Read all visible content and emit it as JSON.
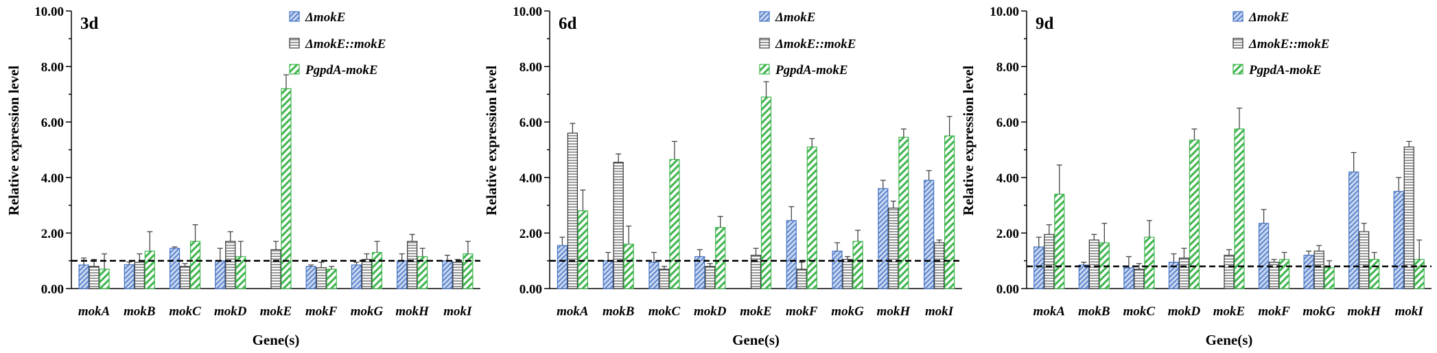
{
  "series_colors": [
    "#4472c4",
    "#333333",
    "#3cb44b"
  ],
  "series_fill_colors": [
    "#c9d8f2",
    "#ffffff",
    "#ffffff"
  ],
  "chart_data": [
    {
      "type": "bar",
      "panel_label": "3d",
      "categories": [
        "mokA",
        "mokB",
        "mokC",
        "mokD",
        "mokE",
        "mokF",
        "mokG",
        "mokH",
        "mokI"
      ],
      "series": [
        {
          "name": "ΔmokE",
          "values": [
            0.85,
            0.86,
            1.45,
            1.0,
            0,
            0.8,
            0.85,
            1.0,
            1.0
          ],
          "errors": [
            0.25,
            0.1,
            0.05,
            0.45,
            0,
            0.05,
            0.1,
            0.25,
            0.2
          ]
        },
        {
          "name": "ΔmokE::mokE",
          "values": [
            0.8,
            0.95,
            0.8,
            1.7,
            1.4,
            0.75,
            1.05,
            1.7,
            0.95
          ],
          "errors": [
            0.25,
            0.3,
            0.1,
            0.35,
            0.3,
            0.2,
            0.2,
            0.25,
            0.1
          ]
        },
        {
          "name": "PgpdA-mokE",
          "values": [
            0.7,
            1.35,
            1.7,
            1.15,
            7.2,
            0.7,
            1.3,
            1.15,
            1.25
          ],
          "errors": [
            0.55,
            0.7,
            0.6,
            0.55,
            0.5,
            0.1,
            0.4,
            0.3,
            0.45
          ]
        }
      ],
      "xlabel": "Gene(s)",
      "ylabel": "Relative expression level",
      "ylim": [
        0,
        10
      ],
      "yticks": [
        "0.00",
        "2.00",
        "4.00",
        "6.00",
        "8.00",
        "10.00"
      ],
      "reference_line": 1.0,
      "legend_position": "top-right",
      "grid": false
    },
    {
      "type": "bar",
      "panel_label": "6d",
      "categories": [
        "mokA",
        "mokB",
        "mokC",
        "mokD",
        "mokE",
        "mokF",
        "mokG",
        "mokH",
        "mokI"
      ],
      "series": [
        {
          "name": "ΔmokE",
          "values": [
            1.55,
            1.0,
            0.95,
            1.15,
            0,
            2.45,
            1.35,
            3.6,
            3.9
          ],
          "errors": [
            0.3,
            0.3,
            0.35,
            0.25,
            0,
            0.5,
            0.3,
            0.3,
            0.35
          ]
        },
        {
          "name": "ΔmokE::mokE",
          "values": [
            5.6,
            4.55,
            0.7,
            0.8,
            1.2,
            0.7,
            1.05,
            2.9,
            1.65
          ],
          "errors": [
            0.35,
            0.3,
            0.1,
            0.1,
            0.25,
            0.25,
            0.1,
            0.25,
            0.1
          ]
        },
        {
          "name": "PgpdA-mokE",
          "values": [
            2.8,
            1.6,
            4.65,
            2.2,
            6.9,
            5.1,
            1.7,
            5.45,
            5.5
          ],
          "errors": [
            0.75,
            0.65,
            0.65,
            0.4,
            0.55,
            0.3,
            0.4,
            0.3,
            0.7
          ]
        }
      ],
      "xlabel": "Gene(s)",
      "ylabel": "Relative expression level",
      "ylim": [
        0,
        10
      ],
      "yticks": [
        "0.00",
        "2.00",
        "4.00",
        "6.00",
        "8.00",
        "10.00"
      ],
      "reference_line": 1.0,
      "legend_position": "top-right",
      "grid": false
    },
    {
      "type": "bar",
      "panel_label": "9d",
      "categories": [
        "mokA",
        "mokB",
        "mokC",
        "mokD",
        "mokE",
        "mokF",
        "mokG",
        "mokH",
        "mokI"
      ],
      "series": [
        {
          "name": "ΔmokE",
          "values": [
            1.5,
            0.85,
            0.75,
            0.95,
            0,
            2.35,
            1.2,
            4.2,
            3.5
          ],
          "errors": [
            0.35,
            0.1,
            0.4,
            0.3,
            0,
            0.5,
            0.15,
            0.7,
            0.5
          ]
        },
        {
          "name": "ΔmokE::mokE",
          "values": [
            1.95,
            1.75,
            0.7,
            1.1,
            1.2,
            0.95,
            1.35,
            2.05,
            5.1
          ],
          "errors": [
            0.35,
            0.2,
            0.2,
            0.35,
            0.2,
            0.1,
            0.2,
            0.3,
            0.2
          ]
        },
        {
          "name": "PgpdA-mokE",
          "values": [
            3.4,
            1.65,
            1.85,
            5.35,
            5.75,
            1.05,
            0.75,
            1.05,
            1.05
          ],
          "errors": [
            1.05,
            0.7,
            0.6,
            0.4,
            0.75,
            0.25,
            0.25,
            0.25,
            0.7
          ]
        }
      ],
      "xlabel": "Gene(s)",
      "ylabel": "Relative expression level",
      "ylim": [
        0,
        10
      ],
      "yticks": [
        "0.00",
        "2.00",
        "4.00",
        "6.00",
        "8.00",
        "10.00"
      ],
      "reference_line": 0.8,
      "legend_position": "top-right",
      "grid": false
    }
  ]
}
